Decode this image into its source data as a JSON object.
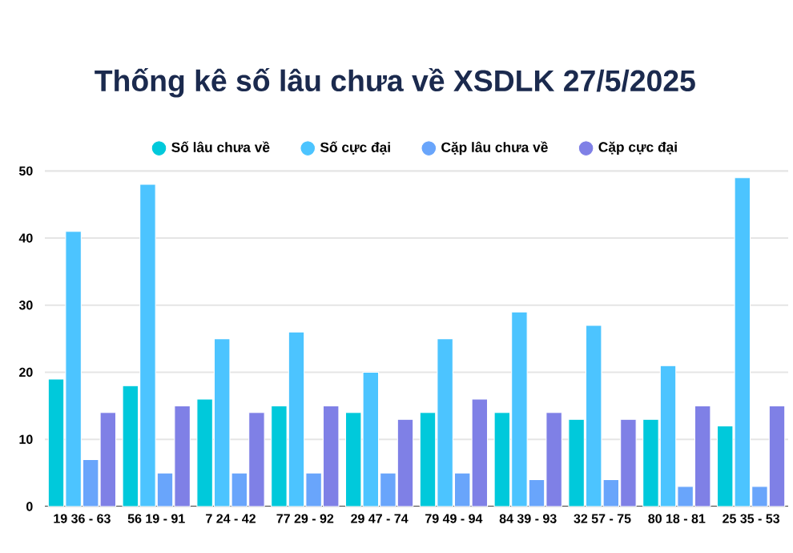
{
  "chart_data": {
    "type": "bar",
    "title": "Thống kê số lâu chưa về XSDLK 27/5/2025",
    "categories": [
      "19 36 - 63",
      "56 19 - 91",
      "7 24 - 42",
      "77 29 - 92",
      "29 47 - 74",
      "79 49 - 94",
      "84 39 - 93",
      "32 57 - 75",
      "80 18 - 81",
      "25 35 - 53"
    ],
    "series": [
      {
        "name": "Số lâu chưa về",
        "color": "#00c9db",
        "values": [
          19,
          18,
          16,
          15,
          14,
          14,
          14,
          13,
          13,
          12
        ]
      },
      {
        "name": "Số cực đại",
        "color": "#4cc4ff",
        "values": [
          41,
          48,
          25,
          26,
          20,
          25,
          29,
          27,
          21,
          49
        ]
      },
      {
        "name": "Cặp lâu chưa về",
        "color": "#69a5fb",
        "values": [
          7,
          5,
          5,
          5,
          5,
          5,
          4,
          4,
          3,
          3
        ]
      },
      {
        "name": "Cặp cực đại",
        "color": "#7f80e6",
        "values": [
          14,
          15,
          14,
          15,
          13,
          16,
          14,
          13,
          15,
          15
        ]
      }
    ],
    "ylim": [
      0,
      50
    ],
    "yticks": [
      0,
      10,
      20,
      30,
      40,
      50
    ],
    "grid": "y",
    "legend": "top"
  }
}
